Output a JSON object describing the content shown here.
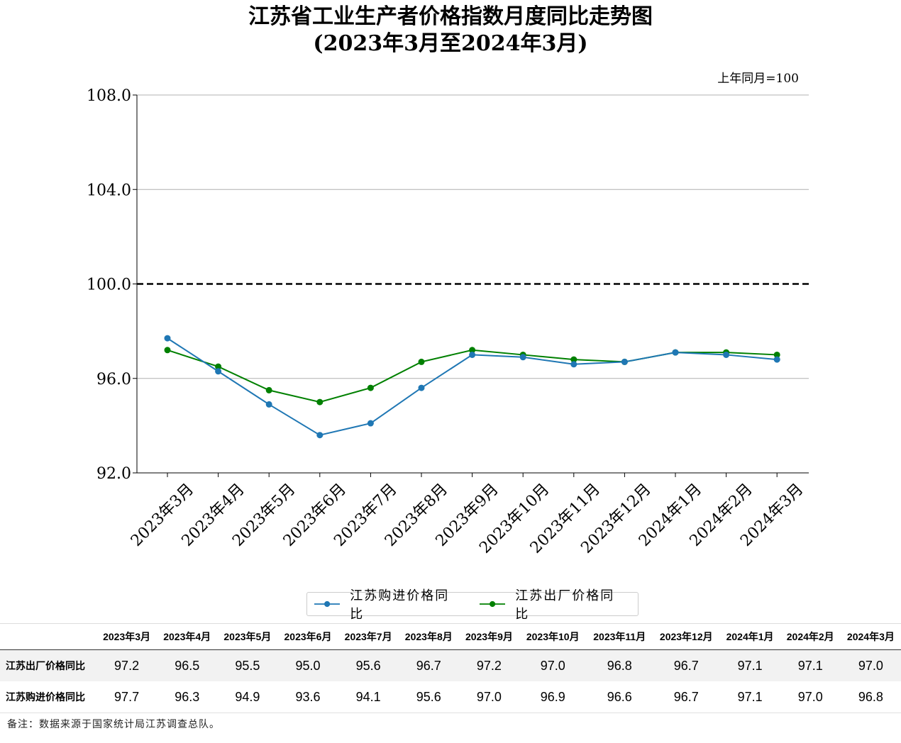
{
  "title_line1": "江苏省工业生产者价格指数月度同比走势图",
  "title_line2": "(2023年3月至2024年3月)",
  "unit_note": "上年同月=100",
  "chart_data": {
    "type": "line",
    "categories": [
      "2023年3月",
      "2023年4月",
      "2023年5月",
      "2023年6月",
      "2023年7月",
      "2023年8月",
      "2023年9月",
      "2023年10月",
      "2023年11月",
      "2023年12月",
      "2024年1月",
      "2024年2月",
      "2024年3月"
    ],
    "series": [
      {
        "name": "江苏购进价格同比",
        "color": "#1f77b4",
        "values": [
          97.7,
          96.3,
          94.9,
          93.6,
          94.1,
          95.6,
          97.0,
          96.9,
          96.6,
          96.7,
          97.1,
          97.0,
          96.8
        ]
      },
      {
        "name": "江苏出厂价格同比",
        "color": "#008000",
        "values": [
          97.2,
          96.5,
          95.5,
          95.0,
          95.6,
          96.7,
          97.2,
          97.0,
          96.8,
          96.7,
          97.1,
          97.1,
          97.0
        ]
      }
    ],
    "ylim": [
      92.0,
      108.0
    ],
    "yticks": [
      92.0,
      96.0,
      100.0,
      104.0,
      108.0
    ],
    "ytick_labels": [
      "92.0",
      "96.0",
      "100.0",
      "104.0",
      "108.0"
    ],
    "reference_line": 100.0,
    "grid": true,
    "legend_position": "bottom-center"
  },
  "table": {
    "headers": [
      "2023年3月",
      "2023年4月",
      "2023年5月",
      "2023年6月",
      "2023年7月",
      "2023年8月",
      "2023年9月",
      "2023年10月",
      "2023年11月",
      "2023年12月",
      "2024年1月",
      "2024年2月",
      "2024年3月"
    ],
    "rows": [
      {
        "label": "江苏出厂价格同比",
        "values": [
          "97.2",
          "96.5",
          "95.5",
          "95.0",
          "95.6",
          "96.7",
          "97.2",
          "97.0",
          "96.8",
          "96.7",
          "97.1",
          "97.1",
          "97.0"
        ]
      },
      {
        "label": "江苏购进价格同比",
        "values": [
          "97.7",
          "96.3",
          "94.9",
          "93.6",
          "94.1",
          "95.6",
          "97.0",
          "96.9",
          "96.6",
          "96.7",
          "97.1",
          "97.0",
          "96.8"
        ]
      }
    ]
  },
  "note": "备注：数据来源于国家统计局江苏调查总队。"
}
